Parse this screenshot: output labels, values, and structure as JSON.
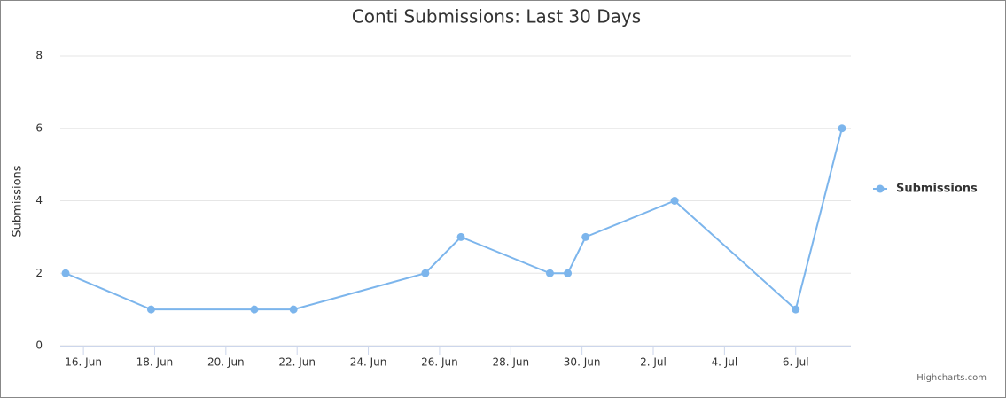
{
  "chart_data": {
    "type": "line",
    "title": "Conti Submissions: Last 30 Days",
    "y_label": "Submissions",
    "credit": "Highcharts.com",
    "x": [
      15.5,
      17.9,
      20.8,
      21.9,
      25.6,
      26.6,
      29.1,
      29.6,
      30.1,
      32.6,
      36.0,
      37.3
    ],
    "series": [
      {
        "name": "Submissions",
        "color": "#7cb5ec",
        "values": [
          2,
          1,
          1,
          1,
          2,
          3,
          2,
          2,
          3,
          4,
          1,
          6
        ]
      }
    ],
    "xlim": [
      15.35,
      37.55
    ],
    "xticks": [
      {
        "value": 16,
        "label": "16. Jun"
      },
      {
        "value": 18,
        "label": "18. Jun"
      },
      {
        "value": 20,
        "label": "20. Jun"
      },
      {
        "value": 22,
        "label": "22. Jun"
      },
      {
        "value": 24,
        "label": "24. Jun"
      },
      {
        "value": 26,
        "label": "26. Jun"
      },
      {
        "value": 28,
        "label": "28. Jun"
      },
      {
        "value": 30,
        "label": "30. Jun"
      },
      {
        "value": 32,
        "label": "2. Jul"
      },
      {
        "value": 34,
        "label": "4. Jul"
      },
      {
        "value": 36,
        "label": "6. Jul"
      }
    ],
    "ylim": [
      0,
      8
    ],
    "yticks": [
      0,
      2,
      4,
      6,
      8
    ],
    "grid": true,
    "legend": "right"
  }
}
